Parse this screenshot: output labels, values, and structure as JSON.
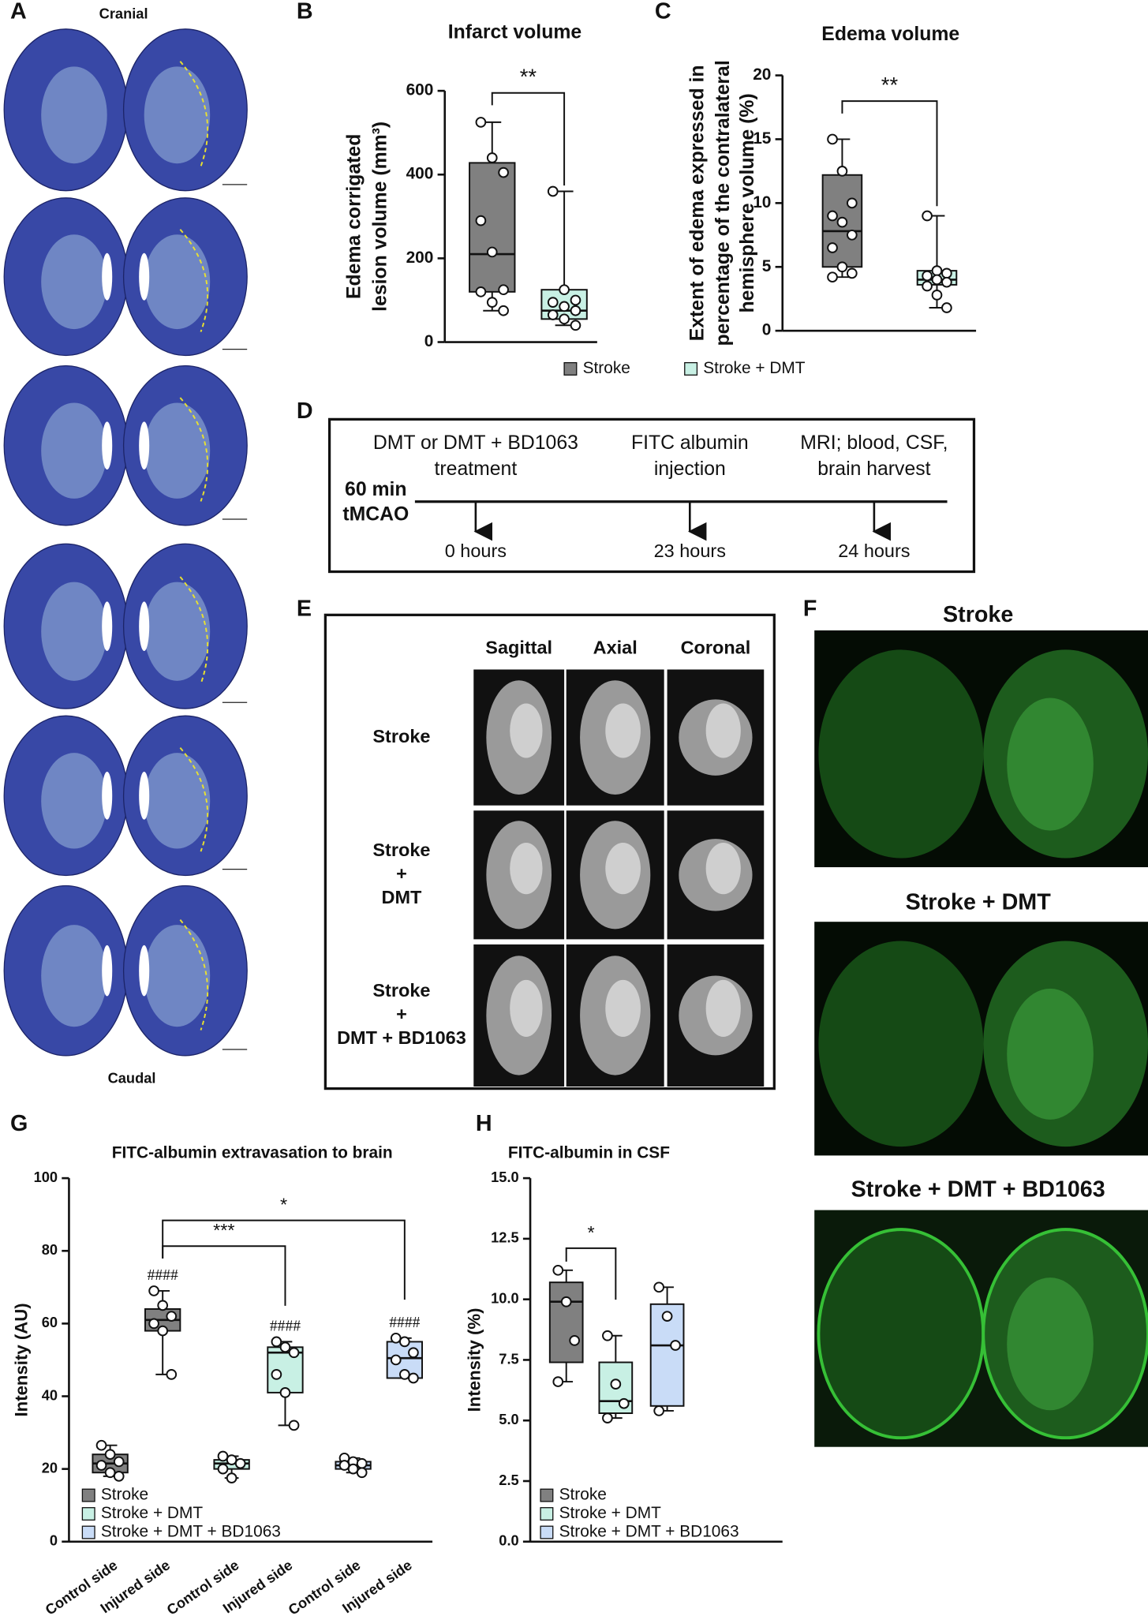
{
  "panel_labels": [
    "A",
    "B",
    "C",
    "D",
    "E",
    "F",
    "G",
    "H"
  ],
  "panel_a": {
    "top": "Cranial",
    "bottom": "Caudal"
  },
  "chart_data": [
    {
      "type": "box",
      "title": "Infarct volume",
      "ylabel": [
        "Edema corrigated",
        "lesion volume (mm³)"
      ],
      "ylim": [
        0,
        600
      ],
      "yticks": [
        0,
        200,
        400,
        600
      ],
      "boxes": [
        {
          "color": "#808080",
          "min": 75,
          "q1": 120,
          "median": 210,
          "q3": 428,
          "max": 525,
          "points": [
            525,
            440,
            405,
            290,
            215,
            125,
            120,
            95,
            75
          ]
        },
        {
          "color": "#c8f0e4",
          "min": 40,
          "q1": 55,
          "median": 75,
          "q3": 125,
          "max": 360,
          "points": [
            360,
            125,
            100,
            95,
            85,
            75,
            65,
            55,
            40
          ]
        }
      ],
      "legend": [
        {
          "name": "Stroke",
          "color": "#808080"
        },
        {
          "name": "Stroke + DMT",
          "color": "#c8f0e4"
        }
      ],
      "annotations": [
        {
          "text": "**",
          "from": 0,
          "to": 1
        }
      ]
    },
    {
      "type": "box",
      "title": "Edema volume",
      "ylabel": [
        "Extent of edema expressed in",
        "percentage of the contralateral",
        "hemisphere volume (%)"
      ],
      "ylim": [
        0,
        20
      ],
      "yticks": [
        0,
        5,
        10,
        15,
        20
      ],
      "boxes": [
        {
          "color": "#808080",
          "min": 4.2,
          "q1": 5,
          "median": 7.8,
          "q3": 12.2,
          "max": 15,
          "points": [
            15,
            12.5,
            10,
            9,
            8.5,
            7.5,
            6.5,
            5,
            4.5,
            4.2
          ]
        },
        {
          "color": "#c8f0e4",
          "min": 1.8,
          "q1": 3.6,
          "median": 4,
          "q3": 4.7,
          "max": 9,
          "points": [
            9,
            4.7,
            4.5,
            4.3,
            4,
            3.8,
            3.5,
            2.8,
            1.8
          ]
        }
      ],
      "annotations": [
        {
          "text": "**",
          "from": 0,
          "to": 1
        }
      ]
    },
    {
      "type": "box",
      "title": "FITC-albumin extravasation to brain",
      "ylabel": [
        "Intensity (AU)"
      ],
      "ylim": [
        0,
        100
      ],
      "yticks": [
        0,
        20,
        40,
        60,
        80,
        100
      ],
      "categories": [
        "Control side",
        "Injured side",
        "Control side",
        "Injured side",
        "Control side",
        "Injured side"
      ],
      "boxes": [
        {
          "color": "#808080",
          "min": 18,
          "q1": 19,
          "median": 21.5,
          "q3": 24,
          "max": 26.5,
          "points": [
            26.5,
            24,
            22,
            21,
            19,
            18
          ]
        },
        {
          "color": "#808080",
          "min": 46,
          "q1": 58,
          "median": 61,
          "q3": 64,
          "max": 69,
          "points": [
            69,
            65,
            62,
            60,
            58,
            46
          ]
        },
        {
          "color": "#c8f0e4",
          "min": 17.5,
          "q1": 20,
          "median": 21.5,
          "q3": 22.5,
          "max": 23.5,
          "points": [
            23.5,
            22.5,
            21.5,
            20,
            17.5
          ]
        },
        {
          "color": "#c8f0e4",
          "min": 32,
          "q1": 41,
          "median": 52,
          "q3": 53.5,
          "max": 55,
          "points": [
            55,
            53.5,
            52,
            46,
            41,
            32
          ]
        },
        {
          "color": "#c9dcf7",
          "min": 19,
          "q1": 20,
          "median": 21,
          "q3": 22,
          "max": 23,
          "points": [
            23,
            22,
            21.5,
            21,
            20,
            19
          ]
        },
        {
          "color": "#c9dcf7",
          "min": 45,
          "q1": 45,
          "median": 50.5,
          "q3": 55,
          "max": 56,
          "points": [
            56,
            55,
            52,
            50,
            46,
            45
          ]
        }
      ],
      "legend": [
        {
          "name": "Stroke",
          "color": "#808080"
        },
        {
          "name": "Stroke + DMT",
          "color": "#c8f0e4"
        },
        {
          "name": "Stroke + DMT + BD1063",
          "color": "#c9dcf7"
        }
      ],
      "annotations": [
        {
          "text": "***",
          "from": 1,
          "to": 3
        },
        {
          "text": "*",
          "from": 1,
          "to": 5
        },
        {
          "text": "####",
          "at": 1
        },
        {
          "text": "####",
          "at": 3
        },
        {
          "text": "####",
          "at": 5
        }
      ]
    },
    {
      "type": "box",
      "title": "FITC-albumin in CSF",
      "ylabel": [
        "Intensity (%)"
      ],
      "ylim": [
        0,
        15
      ],
      "yticks": [
        {
          "value": 0,
          "label": "0.0"
        },
        2.5,
        {
          "value": 5,
          "label": "5.0"
        },
        7.5,
        {
          "value": 10,
          "label": "10.0"
        },
        12.5,
        {
          "value": 15,
          "label": "15.0"
        }
      ],
      "boxes": [
        {
          "color": "#808080",
          "min": 6.6,
          "q1": 7.4,
          "median": 9.9,
          "q3": 10.7,
          "max": 11.2,
          "points": [
            11.2,
            9.9,
            8.3,
            6.6
          ]
        },
        {
          "color": "#c8f0e4",
          "min": 5.1,
          "q1": 5.3,
          "median": 5.8,
          "q3": 7.4,
          "max": 8.5,
          "points": [
            8.5,
            6.5,
            5.7,
            5.1
          ]
        },
        {
          "color": "#c9dcf7",
          "min": 5.4,
          "q1": 5.6,
          "median": 8.1,
          "q3": 9.8,
          "max": 10.5,
          "points": [
            10.5,
            9.3,
            8.1,
            5.4
          ]
        }
      ],
      "legend": [
        {
          "name": "Stroke",
          "color": "#808080"
        },
        {
          "name": "Stroke + DMT",
          "color": "#c8f0e4"
        },
        {
          "name": "Stroke + DMT + BD1063",
          "color": "#c9dcf7"
        }
      ],
      "annotations": [
        {
          "text": "*",
          "from": 0,
          "to": 1
        }
      ]
    }
  ],
  "panel_d": {
    "start": [
      "60 min",
      "tMCAO"
    ],
    "events": [
      {
        "text": [
          "DMT or DMT + BD1063",
          "treatment"
        ],
        "time": "0 hours"
      },
      {
        "text": [
          "FITC albumin",
          "injection"
        ],
        "time": "23 hours"
      },
      {
        "text": [
          "MRI; blood, CSF,",
          "brain harvest"
        ],
        "time": "24 hours"
      }
    ]
  },
  "panel_e": {
    "columns": [
      "Sagittal",
      "Axial",
      "Coronal"
    ],
    "rows": [
      [
        "Stroke"
      ],
      [
        "Stroke",
        "+",
        "DMT"
      ],
      [
        "Stroke",
        "+",
        "DMT + BD1063"
      ]
    ]
  },
  "panel_f": {
    "titles": [
      "Stroke",
      "Stroke + DMT",
      "Stroke + DMT + BD1063"
    ]
  }
}
